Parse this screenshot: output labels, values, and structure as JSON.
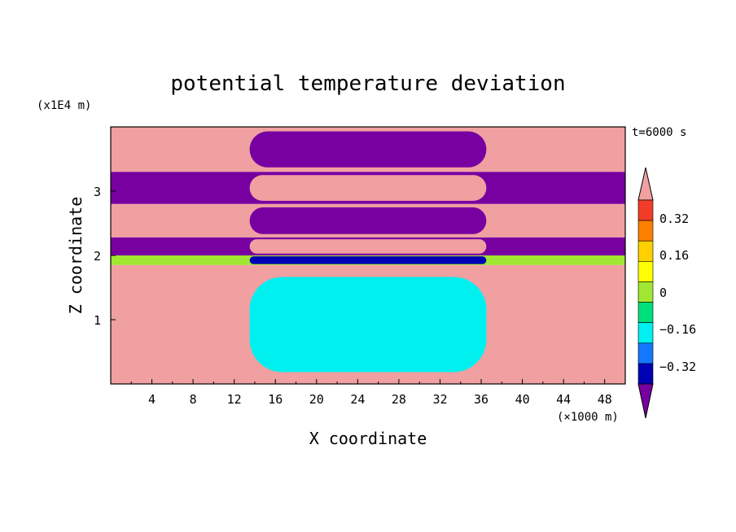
{
  "chart_data": {
    "type": "heatmap",
    "title": "potential temperature deviation",
    "xlabel": "X coordinate",
    "ylabel": "Z coordinate",
    "x_unit": "(×1000 m)",
    "y_unit": "(x1E4 m)",
    "time_label": "t=6000 s",
    "xlim": [
      0,
      50
    ],
    "ylim": [
      0,
      4
    ],
    "x_ticks": [
      "4",
      "8",
      "12",
      "16",
      "20",
      "24",
      "28",
      "32",
      "36",
      "40",
      "44",
      "48"
    ],
    "y_ticks": [
      "1",
      "2",
      "3"
    ],
    "colorbar": {
      "labels": [
        "0.32",
        "0.16",
        "0",
        "−0.16",
        "−0.32"
      ],
      "colors": [
        "#f0a0a0",
        "#f03c28",
        "#ff7f00",
        "#ffd000",
        "#ffff00",
        "#a0e632",
        "#00e07a",
        "#00f0f0",
        "#1478ff",
        "#0000b4",
        "#7800a0"
      ],
      "levels": [
        0.4,
        0.32,
        0.24,
        0.16,
        0.08,
        0.0,
        -0.08,
        -0.16,
        -0.24,
        -0.32,
        -0.4
      ]
    },
    "bands": [
      {
        "z_top": 4.0,
        "z_bot": 3.3,
        "center": "#7800a0",
        "edges": "#f0a0a0"
      },
      {
        "z_top": 3.3,
        "z_bot": 2.8,
        "center": "#f0a0a0",
        "edges": "#7800a0"
      },
      {
        "z_top": 2.8,
        "z_bot": 2.28,
        "center": "#7800a0",
        "edges": "#f0a0a0"
      },
      {
        "z_top": 2.28,
        "z_bot": 2.0,
        "center": "#f0a0a0",
        "edges": "#7800a0"
      },
      {
        "z_top": 2.0,
        "z_bot": 1.85,
        "center": "#0000b4",
        "edges": "#a0e632"
      },
      {
        "z_top": 1.85,
        "z_bot": 0.0,
        "center": "#00f0f0",
        "edges": "#f0a0a0"
      }
    ]
  }
}
